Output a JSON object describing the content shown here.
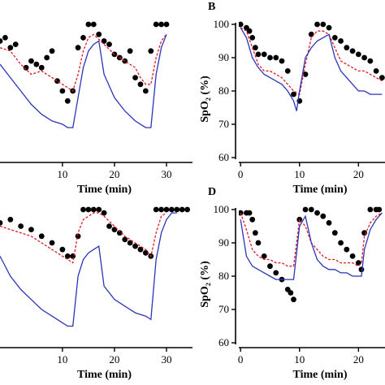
{
  "chart_data": [
    {
      "panel": "A",
      "type": "line",
      "panel_label": "",
      "xlabel": "Time (min)",
      "ylabel": "",
      "xlim": [
        -2,
        35
      ],
      "ylim": [
        60,
        100
      ],
      "xticks": [
        10,
        20,
        30
      ],
      "yticks": [],
      "series": [
        {
          "style": "dots",
          "color": "#000000",
          "x": [
            -2,
            -1,
            0,
            1,
            3,
            4,
            5,
            6,
            7,
            8,
            9,
            10,
            11,
            12,
            13,
            14,
            15,
            16,
            17,
            18,
            19,
            20,
            21,
            22,
            23,
            24,
            25,
            26,
            27,
            28,
            29,
            30
          ],
          "y": [
            95,
            96,
            93,
            94,
            87,
            89,
            88,
            87,
            90,
            92,
            83,
            80,
            77,
            80,
            93,
            96,
            100,
            100,
            97,
            95,
            94,
            91,
            90,
            89,
            92,
            84,
            82,
            80,
            92,
            100,
            100,
            100
          ]
        },
        {
          "style": "dashed",
          "color": "#e0191f",
          "x": [
            -2,
            0,
            2,
            4,
            6,
            8,
            10,
            11,
            12,
            13,
            14,
            15,
            16,
            18,
            20,
            22,
            24,
            25,
            26,
            27,
            28,
            29,
            30
          ],
          "y": [
            93,
            92,
            88,
            85,
            86,
            84,
            82,
            81,
            80,
            85,
            92,
            96,
            97,
            94,
            91,
            89,
            87,
            84,
            82,
            82,
            90,
            95,
            97
          ]
        },
        {
          "style": "solid",
          "color": "#2a35b8",
          "x": [
            -2,
            0,
            2,
            4,
            6,
            8,
            10,
            11,
            12,
            13,
            14,
            15,
            16,
            17,
            18,
            20,
            22,
            24,
            26,
            27,
            28,
            29,
            30
          ],
          "y": [
            88,
            84,
            80,
            76,
            73,
            71,
            70,
            69,
            69,
            78,
            87,
            92,
            94,
            95,
            85,
            78,
            74,
            71,
            69,
            69,
            85,
            93,
            97
          ]
        }
      ]
    },
    {
      "panel": "B",
      "type": "line",
      "panel_label": "B",
      "xlabel": "Time (min)",
      "ylabel": "SpO₂ (%)",
      "xlim": [
        -0.3,
        24.5
      ],
      "ylim": [
        60,
        100
      ],
      "xticks": [
        0,
        10,
        20
      ],
      "yticks": [
        60,
        70,
        80,
        90,
        100
      ],
      "series": [
        {
          "style": "dots",
          "color": "#000000",
          "x": [
            0,
            1,
            1.5,
            2,
            2.5,
            3,
            4,
            5,
            6,
            7,
            8,
            9,
            10,
            11,
            12,
            13,
            14,
            15,
            16,
            17,
            18,
            19,
            20,
            21,
            22,
            23,
            24
          ],
          "y": [
            100,
            99,
            98,
            96,
            93,
            91,
            91,
            90,
            90,
            89,
            86,
            79,
            77,
            85,
            97,
            100,
            100,
            99,
            96,
            95,
            93,
            92,
            91,
            90,
            89,
            86,
            84
          ]
        },
        {
          "style": "dashed",
          "color": "#e0191f",
          "x": [
            0,
            1,
            2,
            3,
            4,
            5,
            6,
            7,
            8,
            9,
            10,
            11,
            12,
            13,
            14,
            15,
            16,
            17,
            18,
            19,
            20,
            21,
            22,
            23,
            24
          ],
          "y": [
            99,
            98,
            93,
            88,
            86,
            86,
            85,
            84,
            82,
            80,
            79,
            88,
            96,
            98,
            98,
            97,
            93,
            89,
            88,
            87,
            86,
            86,
            85,
            84,
            83
          ]
        },
        {
          "style": "solid",
          "color": "#2a35b8",
          "x": [
            0,
            1,
            2,
            3,
            4,
            5,
            6,
            7,
            8,
            9,
            9.5,
            10,
            11,
            12,
            13,
            14,
            15,
            16,
            17,
            18,
            19,
            20,
            21,
            22,
            23,
            24
          ],
          "y": [
            99,
            96,
            90,
            87,
            85,
            84,
            83,
            82,
            80,
            77,
            74,
            80,
            90,
            93,
            95,
            96,
            97,
            90,
            86,
            84,
            82,
            80,
            80,
            79,
            79,
            79
          ]
        }
      ]
    },
    {
      "panel": "C",
      "type": "line",
      "panel_label": "",
      "xlabel": "Time (min)",
      "ylabel": "",
      "xlim": [
        -2,
        35
      ],
      "ylim": [
        60,
        100
      ],
      "xticks": [
        10,
        20,
        30
      ],
      "yticks": [],
      "series": [
        {
          "style": "dots",
          "color": "#000000",
          "x": [
            -2,
            0,
            2,
            4,
            6,
            8,
            10,
            11,
            12,
            13,
            14,
            15,
            16,
            17,
            18,
            19,
            20,
            21,
            22,
            23,
            24,
            25,
            26,
            27,
            28,
            29,
            30,
            31,
            32,
            33,
            34
          ],
          "y": [
            96,
            97,
            95,
            94,
            92,
            90,
            88,
            86,
            86,
            92,
            100,
            100,
            100,
            100,
            99,
            95,
            94,
            93,
            91,
            90,
            89,
            88,
            87,
            86,
            100,
            100,
            100,
            100,
            100,
            100,
            100
          ]
        },
        {
          "style": "dashed",
          "color": "#e0191f",
          "x": [
            -2,
            0,
            2,
            4,
            6,
            8,
            10,
            11,
            12,
            13,
            14,
            15,
            16,
            17,
            18,
            20,
            22,
            24,
            26,
            27,
            28,
            29,
            30
          ],
          "y": [
            95,
            94,
            93,
            92,
            90,
            88,
            86,
            85,
            84,
            93,
            97,
            98,
            99,
            99,
            98,
            95,
            92,
            90,
            88,
            86,
            93,
            98,
            99
          ]
        },
        {
          "style": "solid",
          "color": "#2a35b8",
          "x": [
            -2,
            0,
            2,
            4,
            6,
            8,
            10,
            11,
            12,
            13,
            14,
            15,
            16,
            17,
            18,
            20,
            22,
            24,
            26,
            27,
            28,
            29,
            30,
            31,
            32
          ],
          "y": [
            86,
            80,
            76,
            73,
            70,
            68,
            66,
            65,
            65,
            80,
            85,
            87,
            88,
            89,
            77,
            73,
            71,
            69,
            68,
            67,
            85,
            93,
            97,
            99,
            99
          ]
        }
      ]
    },
    {
      "panel": "D",
      "type": "line",
      "panel_label": "D",
      "xlabel": "Time (min)",
      "ylabel": "SpO₂ (%)",
      "xlim": [
        -0.3,
        24.5
      ],
      "ylim": [
        60,
        100
      ],
      "xticks": [
        0,
        10,
        20
      ],
      "yticks": [
        60,
        70,
        80,
        90,
        100
      ],
      "series": [
        {
          "style": "dots",
          "color": "#000000",
          "x": [
            0,
            1,
            1.5,
            2,
            2.5,
            3,
            4,
            5,
            6,
            7,
            8,
            8.5,
            9,
            10,
            11,
            12,
            13,
            14,
            15,
            16,
            17,
            18,
            19,
            20,
            20.5,
            21,
            22,
            23,
            23.5
          ],
          "y": [
            99,
            99,
            99,
            97,
            93,
            90,
            86,
            83,
            81,
            79,
            76,
            75,
            73,
            97,
            100,
            100,
            99,
            98,
            96,
            93,
            90,
            88,
            86,
            84,
            82,
            93,
            100,
            100,
            100
          ]
        },
        {
          "style": "dashed",
          "color": "#e0191f",
          "x": [
            0,
            1,
            2,
            3,
            4,
            5,
            6,
            7,
            8,
            9,
            10,
            11,
            12,
            13,
            14,
            15,
            16,
            17,
            18,
            19,
            20,
            20.5,
            21,
            22,
            23,
            24
          ],
          "y": [
            99,
            94,
            88,
            86,
            85,
            85,
            84,
            84,
            83,
            83,
            97,
            95,
            90,
            88,
            86,
            85,
            85,
            84,
            84,
            84,
            83,
            84,
            92,
            96,
            98,
            99
          ]
        },
        {
          "style": "solid",
          "color": "#2a35b8",
          "x": [
            0,
            1,
            2,
            3,
            4,
            5,
            6,
            7,
            8,
            9,
            10,
            11,
            12,
            13,
            14,
            15,
            16,
            17,
            18,
            19,
            20,
            20.5,
            21,
            22,
            23,
            24
          ],
          "y": [
            97,
            86,
            83,
            82,
            81,
            80,
            79,
            79,
            79,
            79,
            95,
            98,
            90,
            85,
            83,
            82,
            82,
            81,
            81,
            80,
            80,
            80,
            88,
            94,
            97,
            99
          ]
        }
      ]
    }
  ]
}
